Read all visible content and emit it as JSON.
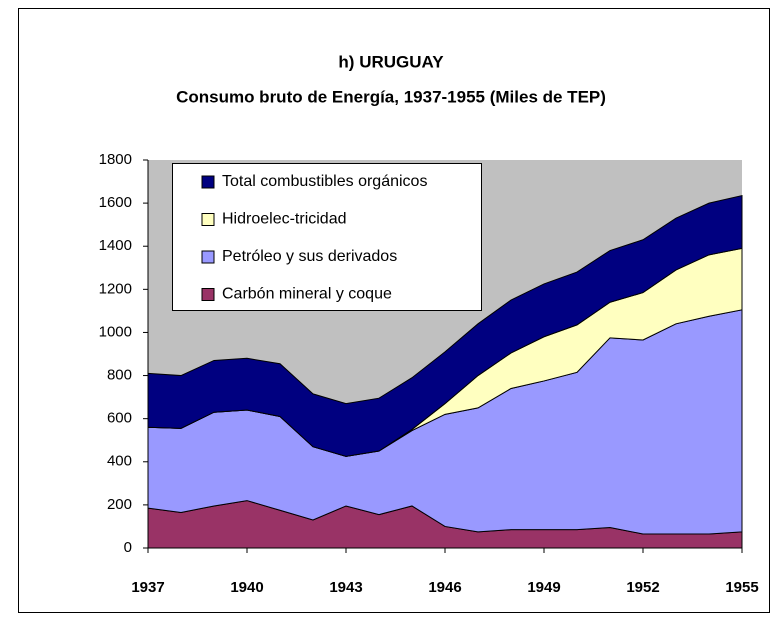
{
  "chart_data": {
    "type": "stacked_area",
    "title": "h) URUGUAY",
    "subtitle": "Consumo bruto de Energía, 1937-1955 (Miles de TEP)",
    "x": [
      1937,
      1938,
      1939,
      1940,
      1941,
      1942,
      1943,
      1944,
      1945,
      1946,
      1947,
      1948,
      1949,
      1950,
      1951,
      1952,
      1953,
      1954,
      1955
    ],
    "xlim": [
      1937,
      1955
    ],
    "xticks": [
      1937,
      1940,
      1943,
      1946,
      1949,
      1952,
      1955
    ],
    "ylim": [
      0,
      1800
    ],
    "yticks": [
      0,
      200,
      400,
      600,
      800,
      1000,
      1200,
      1400,
      1600,
      1800
    ],
    "grid": false,
    "legend": "top-left",
    "series": [
      {
        "name": "Carbón mineral y coque",
        "color": "#993366",
        "values": [
          185,
          165,
          195,
          220,
          175,
          130,
          195,
          155,
          195,
          100,
          75,
          85,
          85,
          85,
          95,
          65,
          65,
          65,
          75
        ]
      },
      {
        "name": "Petróleo y sus derivados",
        "color": "#9999ff",
        "values": [
          375,
          390,
          435,
          420,
          435,
          340,
          230,
          295,
          350,
          520,
          575,
          655,
          690,
          730,
          880,
          900,
          975,
          1010,
          1030
        ]
      },
      {
        "name": "Hidroelec-tricidad",
        "color": "#ffffc0",
        "values": [
          0,
          0,
          0,
          0,
          0,
          0,
          0,
          0,
          5,
          50,
          150,
          165,
          205,
          220,
          165,
          220,
          250,
          285,
          285
        ]
      },
      {
        "name": "Total combustibles orgánicos",
        "color": "#000080",
        "values": [
          250,
          245,
          240,
          240,
          245,
          245,
          245,
          245,
          240,
          240,
          240,
          245,
          245,
          245,
          240,
          245,
          240,
          240,
          245
        ]
      }
    ]
  }
}
